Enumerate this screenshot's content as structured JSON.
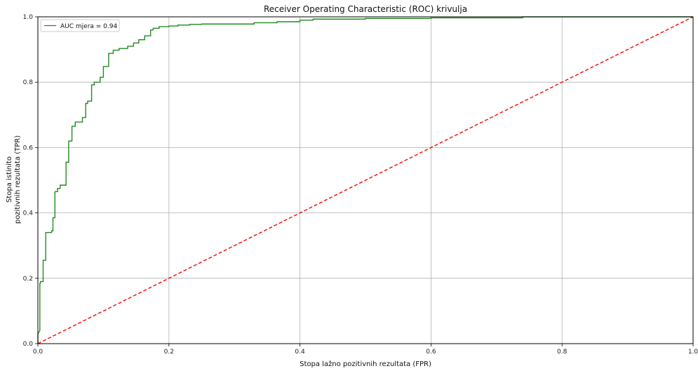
{
  "chart_data": {
    "type": "line",
    "title": "Receiver Operating Characteristic (ROC) krivulja",
    "xlabel": "Stopa lažno pozitivnih rezultata (FPR)",
    "ylabel_line1": "Stopa istinito",
    "ylabel_line2": "pozitivnih rezultata (TPR)",
    "xlim": [
      0,
      1
    ],
    "ylim": [
      0,
      1
    ],
    "grid": true,
    "legend_position": "top-left",
    "x_ticks": [
      "0.0",
      "0.2",
      "0.4",
      "0.6",
      "0.8",
      "1.0"
    ],
    "y_ticks": [
      "0.0",
      "0.2",
      "0.4",
      "0.6",
      "0.8",
      "1.0"
    ],
    "series": [
      {
        "name": "AUC mjera = 0.94",
        "color": "#228b22",
        "style": "solid",
        "x": [
          0.0,
          0.0,
          0.003,
          0.003,
          0.004,
          0.004,
          0.008,
          0.008,
          0.012,
          0.012,
          0.021,
          0.021,
          0.023,
          0.023,
          0.026,
          0.026,
          0.03,
          0.03,
          0.034,
          0.034,
          0.043,
          0.043,
          0.047,
          0.047,
          0.052,
          0.052,
          0.057,
          0.057,
          0.068,
          0.068,
          0.073,
          0.073,
          0.076,
          0.076,
          0.082,
          0.082,
          0.086,
          0.086,
          0.095,
          0.095,
          0.1,
          0.1,
          0.108,
          0.108,
          0.115,
          0.115,
          0.124,
          0.124,
          0.137,
          0.137,
          0.146,
          0.146,
          0.154,
          0.154,
          0.163,
          0.163,
          0.172,
          0.172,
          0.176,
          0.176,
          0.185,
          0.185,
          0.2,
          0.2,
          0.214,
          0.214,
          0.232,
          0.232,
          0.25,
          0.25,
          0.33,
          0.33,
          0.365,
          0.365,
          0.4,
          0.4,
          0.42,
          0.42,
          0.5,
          0.5,
          0.6,
          0.6,
          0.74,
          0.74,
          1.0
        ],
        "y": [
          0.0,
          0.03,
          0.04,
          0.185,
          0.185,
          0.19,
          0.19,
          0.255,
          0.255,
          0.34,
          0.34,
          0.345,
          0.345,
          0.385,
          0.385,
          0.465,
          0.465,
          0.475,
          0.475,
          0.485,
          0.485,
          0.555,
          0.555,
          0.62,
          0.62,
          0.665,
          0.665,
          0.678,
          0.678,
          0.692,
          0.692,
          0.735,
          0.735,
          0.742,
          0.742,
          0.792,
          0.792,
          0.8,
          0.8,
          0.815,
          0.815,
          0.848,
          0.848,
          0.888,
          0.888,
          0.898,
          0.898,
          0.903,
          0.903,
          0.91,
          0.91,
          0.92,
          0.92,
          0.93,
          0.93,
          0.942,
          0.942,
          0.96,
          0.96,
          0.965,
          0.965,
          0.97,
          0.97,
          0.972,
          0.972,
          0.975,
          0.975,
          0.977,
          0.977,
          0.978,
          0.978,
          0.982,
          0.982,
          0.985,
          0.985,
          0.99,
          0.99,
          0.993,
          0.993,
          0.995,
          0.995,
          0.997,
          0.997,
          1.0,
          1.0
        ]
      },
      {
        "name": "",
        "color": "#ff0000",
        "style": "dashed",
        "x": [
          0,
          1
        ],
        "y": [
          0,
          1
        ]
      }
    ]
  }
}
